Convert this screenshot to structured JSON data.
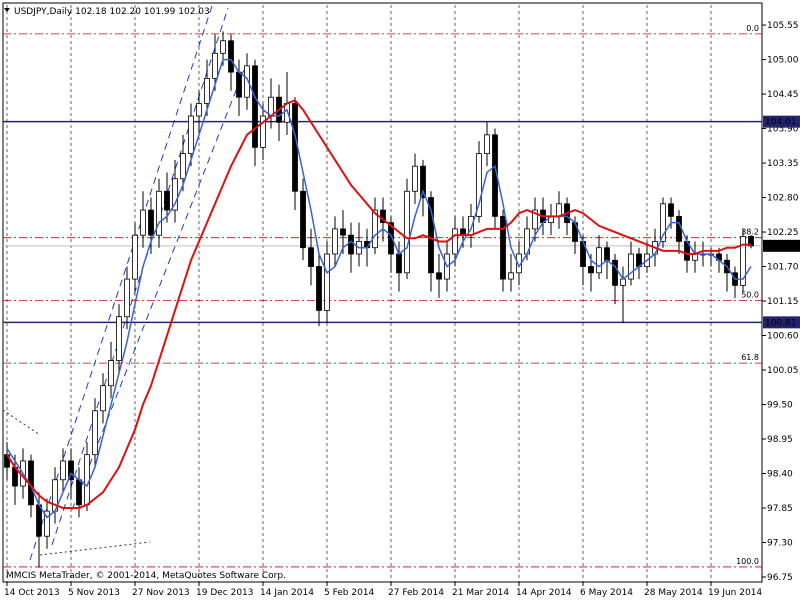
{
  "chart_data": {
    "type": "candlestick",
    "header": {
      "symbol": "USDJPY,Daily",
      "quote": [
        "102.18",
        "102.20",
        "101.99",
        "102.03"
      ]
    },
    "footer": "MMCIS MetaTrader, © 2001-2014, MetaQuotes Software Corp.",
    "categories": [
      "14 Oct 2013",
      null,
      null,
      null,
      null,
      null,
      null,
      null,
      "5 Nov 2013",
      null,
      null,
      null,
      null,
      null,
      null,
      null,
      "27 Nov 2013",
      null,
      null,
      null,
      null,
      null,
      null,
      null,
      "19 Dec 2013",
      null,
      null,
      null,
      null,
      null,
      null,
      null,
      "14 Jan 2014",
      null,
      null,
      null,
      null,
      null,
      null,
      null,
      "5 Feb 2014",
      null,
      null,
      null,
      null,
      null,
      null,
      null,
      "27 Feb 2014",
      null,
      null,
      null,
      null,
      null,
      null,
      null,
      "21 Mar 2014",
      null,
      null,
      null,
      null,
      null,
      null,
      null,
      "14 Apr 2014",
      null,
      null,
      null,
      null,
      null,
      null,
      null,
      "6 May 2014",
      null,
      null,
      null,
      null,
      null,
      null,
      null,
      "28 May 2014",
      null,
      null,
      null,
      null,
      null,
      null,
      null,
      "19 Jun 2014",
      null,
      null,
      null,
      null,
      null
    ],
    "open": [
      98.7,
      98.5,
      98.2,
      98.6,
      97.9,
      97.4,
      97.8,
      98.3,
      98.6,
      98.3,
      97.9,
      98.7,
      99.4,
      99.8,
      100.2,
      100.9,
      101.5,
      102.2,
      102.6,
      102.2,
      102.9,
      102.6,
      103.1,
      103.5,
      104.1,
      104.3,
      104.7,
      105.1,
      105.3,
      104.8,
      104.4,
      104.9,
      103.6,
      104.1,
      104.4,
      104.0,
      104.3,
      102.9,
      102.0,
      101.7,
      101.0,
      101.9,
      102.3,
      102.2,
      101.9,
      102.1,
      102.0,
      102.6,
      102.4,
      101.9,
      101.6,
      102.9,
      103.3,
      102.8,
      101.6,
      101.5,
      101.9,
      102.3,
      102.2,
      102.5,
      103.5,
      103.8,
      102.5,
      101.5,
      101.6,
      101.9,
      102.3,
      102.6,
      102.4,
      102.5,
      102.7,
      102.4,
      102.1,
      101.7,
      101.6,
      102.0,
      101.8,
      101.4,
      101.5,
      101.9,
      101.7,
      101.9,
      102.1,
      102.7,
      102.5,
      102.1,
      101.8,
      101.9,
      101.9,
      101.9,
      101.8,
      101.6,
      101.4,
      102.18
    ],
    "high": [
      98.9,
      98.7,
      98.8,
      98.7,
      98.1,
      98.0,
      98.5,
      98.8,
      98.8,
      98.5,
      98.9,
      99.6,
      100.0,
      100.5,
      101.1,
      101.7,
      102.4,
      102.9,
      102.8,
      103.1,
      103.2,
      103.4,
      103.8,
      104.3,
      104.5,
      105.0,
      105.4,
      105.45,
      105.4,
      105.0,
      105.1,
      105.0,
      104.3,
      104.7,
      104.6,
      104.8,
      104.4,
      103.1,
      102.3,
      101.9,
      102.1,
      102.5,
      102.6,
      102.4,
      102.4,
      102.3,
      102.8,
      102.8,
      102.5,
      102.1,
      103.1,
      103.5,
      103.4,
      102.9,
      101.9,
      102.1,
      102.5,
      102.5,
      102.7,
      103.7,
      104.0,
      103.9,
      102.6,
      101.9,
      102.1,
      102.5,
      102.8,
      102.8,
      102.7,
      102.9,
      102.8,
      102.5,
      102.2,
      101.9,
      102.2,
      102.1,
      101.9,
      101.7,
      102.1,
      102.0,
      102.1,
      102.3,
      102.8,
      102.8,
      102.6,
      102.2,
      102.1,
      102.1,
      102.0,
      102.0,
      101.9,
      101.7,
      102.3,
      102.2
    ],
    "low": [
      98.3,
      97.9,
      98.0,
      97.7,
      96.9,
      97.2,
      97.6,
      98.1,
      98.0,
      97.7,
      97.8,
      98.5,
      99.2,
      99.6,
      100.0,
      100.7,
      101.3,
      102.0,
      101.9,
      102.0,
      102.4,
      102.4,
      102.9,
      103.3,
      103.8,
      104.1,
      104.5,
      104.9,
      104.5,
      104.1,
      104.2,
      103.3,
      103.4,
      103.9,
      103.7,
      103.8,
      102.6,
      101.8,
      101.4,
      100.75,
      100.8,
      101.7,
      101.9,
      101.6,
      101.7,
      101.7,
      101.9,
      102.1,
      101.6,
      101.3,
      101.5,
      102.7,
      102.5,
      101.3,
      101.2,
      101.3,
      101.7,
      102.0,
      102.0,
      102.4,
      103.3,
      102.3,
      101.3,
      101.3,
      101.4,
      101.8,
      102.1,
      102.2,
      102.2,
      102.3,
      102.2,
      101.9,
      101.4,
      101.3,
      101.5,
      101.5,
      101.1,
      100.8,
      101.4,
      101.5,
      101.6,
      101.7,
      102.0,
      102.3,
      101.9,
      101.6,
      101.6,
      101.7,
      101.7,
      101.6,
      101.3,
      101.2,
      101.3,
      101.99
    ],
    "close": [
      98.5,
      98.2,
      98.6,
      97.9,
      97.4,
      97.8,
      98.3,
      98.6,
      98.3,
      97.9,
      98.7,
      99.4,
      99.8,
      100.2,
      100.9,
      101.5,
      102.2,
      102.6,
      102.2,
      102.9,
      102.6,
      103.1,
      103.5,
      104.1,
      104.3,
      104.7,
      105.1,
      105.3,
      104.8,
      104.4,
      104.9,
      103.6,
      104.1,
      104.4,
      104.0,
      104.3,
      102.9,
      102.0,
      101.7,
      101.0,
      101.9,
      102.3,
      102.2,
      101.9,
      102.1,
      102.0,
      102.6,
      102.4,
      101.9,
      101.6,
      102.9,
      103.3,
      102.8,
      101.6,
      101.5,
      101.9,
      102.3,
      102.2,
      102.5,
      103.5,
      103.8,
      102.5,
      101.5,
      101.6,
      101.9,
      102.3,
      102.6,
      102.4,
      102.5,
      102.7,
      102.4,
      102.1,
      101.7,
      101.6,
      102.0,
      101.8,
      101.4,
      101.5,
      101.9,
      101.7,
      101.9,
      102.1,
      102.7,
      102.5,
      102.1,
      101.8,
      101.9,
      101.9,
      101.9,
      101.8,
      101.6,
      101.4,
      102.18,
      102.03
    ],
    "up_color": "#ffffff",
    "down_color": "#000000",
    "lines": [
      {
        "color": "#3a62d8",
        "values": [
          98.8,
          98.6,
          98.4,
          98.2,
          97.9,
          97.7,
          97.8,
          98.1,
          98.4,
          98.3,
          98.2,
          98.5,
          99.0,
          99.5,
          100.0,
          100.5,
          101.1,
          101.7,
          102.1,
          102.4,
          102.5,
          102.7,
          103.0,
          103.4,
          103.8,
          104.2,
          104.6,
          105.0,
          105.0,
          104.8,
          104.7,
          104.4,
          104.2,
          104.1,
          104.1,
          104.2,
          103.8,
          103.2,
          102.6,
          101.9,
          101.6,
          101.7,
          102.0,
          102.1,
          102.0,
          102.0,
          102.2,
          102.3,
          102.2,
          101.9,
          102.0,
          102.5,
          102.9,
          102.6,
          102.0,
          101.7,
          101.8,
          102.1,
          102.3,
          102.7,
          103.2,
          103.3,
          102.7,
          102.0,
          101.7,
          101.9,
          102.2,
          102.4,
          102.5,
          102.5,
          102.5,
          102.4,
          102.1,
          101.8,
          101.7,
          101.8,
          101.7,
          101.5,
          101.6,
          101.7,
          101.8,
          101.9,
          102.2,
          102.4,
          102.4,
          102.1,
          101.9,
          101.9,
          101.9,
          101.8,
          101.7,
          101.5,
          101.5,
          101.7
        ]
      },
      {
        "color": "#e01010",
        "values": [
          98.7,
          98.5,
          98.35,
          98.2,
          98.05,
          97.95,
          97.9,
          97.85,
          97.85,
          97.85,
          97.9,
          98.0,
          98.1,
          98.3,
          98.5,
          98.8,
          99.1,
          99.5,
          99.8,
          100.2,
          100.6,
          101.0,
          101.4,
          101.8,
          102.1,
          102.4,
          102.7,
          103.0,
          103.3,
          103.55,
          103.8,
          103.9,
          104.0,
          104.1,
          104.2,
          104.3,
          104.35,
          104.2,
          104.0,
          103.8,
          103.6,
          103.4,
          103.2,
          103.0,
          102.85,
          102.7,
          102.55,
          102.45,
          102.35,
          102.25,
          102.15,
          102.15,
          102.2,
          102.15,
          102.1,
          102.1,
          102.2,
          102.2,
          102.2,
          102.25,
          102.3,
          102.3,
          102.3,
          102.4,
          102.55,
          102.6,
          102.55,
          102.5,
          102.5,
          102.5,
          102.55,
          102.6,
          102.55,
          102.45,
          102.35,
          102.3,
          102.25,
          102.2,
          102.15,
          102.1,
          102.05,
          102.0,
          101.95,
          101.95,
          101.95,
          101.9,
          101.9,
          101.95,
          101.95,
          101.95,
          102.0,
          102.0,
          102.05,
          102.05
        ]
      }
    ],
    "hlines": [
      {
        "value": 104.01,
        "color": "#24246e"
      },
      {
        "value": 100.81,
        "color": "#24246e"
      }
    ],
    "fib_levels": [
      {
        "value": 105.41,
        "label": "0.0"
      },
      {
        "value": 102.16,
        "label": "38.2"
      },
      {
        "value": 101.16,
        "label": "50.0"
      },
      {
        "value": 100.16,
        "label": "61.8"
      },
      {
        "value": 96.91,
        "label": "100.0"
      }
    ],
    "fib_color": "#d00000",
    "ylim": [
      96.67,
      105.87
    ],
    "yticks": [
      105.55,
      {
        "value": 105.0,
        "label": "105.00"
      },
      104.45,
      {
        "value": 103.9,
        "label": "103.90"
      },
      103.35,
      {
        "value": 102.8,
        "label": "102.80"
      },
      102.25,
      {
        "value": 101.7,
        "label": "101.70"
      },
      101.15,
      {
        "value": 100.6,
        "label": "100.60"
      },
      100.05,
      {
        "value": 99.5,
        "label": "99.50"
      },
      98.95,
      {
        "value": 98.4,
        "label": "98.40"
      },
      97.85,
      {
        "value": 97.3,
        "label": "97.30"
      },
      96.75
    ],
    "xgrid": true
  }
}
